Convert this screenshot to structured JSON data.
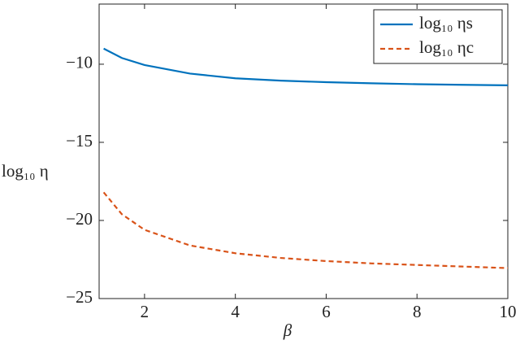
{
  "chart_data": {
    "type": "line",
    "x_label": "β",
    "y_label": "log₁₀ η",
    "x": [
      1.1,
      1.5,
      2,
      3,
      4,
      5,
      6,
      7,
      8,
      9,
      10
    ],
    "series": [
      {
        "name": "log₁₀ ηs",
        "color": "#0072bd",
        "dash": "solid",
        "values": [
          -9.0,
          -9.6,
          -10.05,
          -10.6,
          -10.9,
          -11.05,
          -11.15,
          -11.22,
          -11.28,
          -11.32,
          -11.35
        ]
      },
      {
        "name": "log₁₀ ηc",
        "color": "#d95319",
        "dash": "dashed",
        "values": [
          -18.2,
          -19.6,
          -20.6,
          -21.6,
          -22.1,
          -22.4,
          -22.6,
          -22.75,
          -22.85,
          -22.95,
          -23.05
        ]
      }
    ],
    "xlim": [
      1,
      10
    ],
    "xticks": [
      2,
      4,
      6,
      8,
      10
    ],
    "ylim": [
      -25,
      -6.15
    ],
    "yticks": [
      {
        "value": -10,
        "label": "−10"
      },
      {
        "value": -15,
        "label": "−15"
      },
      {
        "value": -20,
        "label": "−20"
      },
      {
        "value": -25,
        "label": "−25"
      }
    ],
    "legend": "top-right"
  }
}
